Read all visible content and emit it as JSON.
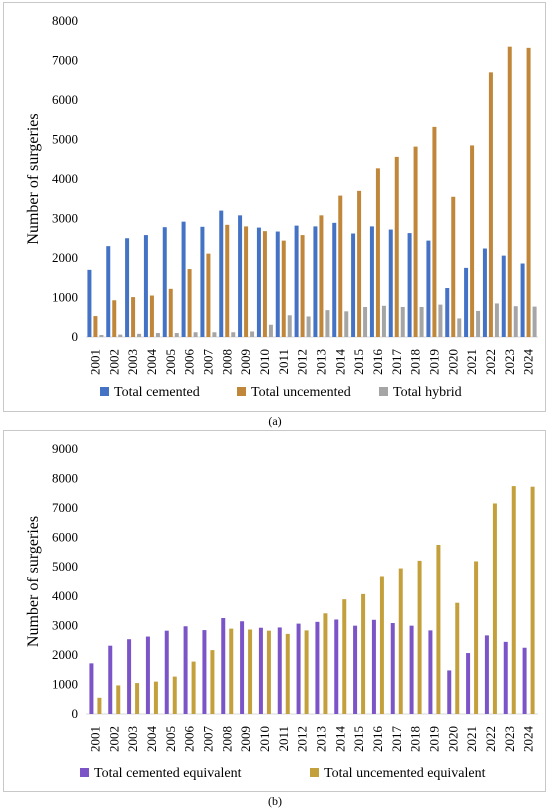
{
  "chart_data": [
    {
      "panel_label": "(a)",
      "type": "bar",
      "ylabel": "Number of surgeries",
      "ylim": [
        0,
        8000
      ],
      "yticks": [
        0,
        1000,
        2000,
        3000,
        4000,
        5000,
        6000,
        7000,
        8000
      ],
      "grid": false,
      "legend_position": "bottom",
      "categories": [
        "2001",
        "2002",
        "2003",
        "2004",
        "2005",
        "2006",
        "2007",
        "2008",
        "2009",
        "2010",
        "2011",
        "2012",
        "2013",
        "2014",
        "2015",
        "2016",
        "2017",
        "2018",
        "2019",
        "2020",
        "2021",
        "2022",
        "2023",
        "2024"
      ],
      "series": [
        {
          "name": "Total cemented",
          "color": "#4472c4",
          "values": [
            1700,
            2300,
            2500,
            2580,
            2780,
            2920,
            2790,
            3200,
            3080,
            2770,
            2670,
            2820,
            2800,
            2890,
            2620,
            2800,
            2720,
            2630,
            2440,
            1240,
            1750,
            2240,
            2060,
            1860
          ]
        },
        {
          "name": "Total uncemented",
          "color": "#c0873a",
          "values": [
            530,
            930,
            1010,
            1050,
            1220,
            1720,
            2110,
            2840,
            2800,
            2680,
            2440,
            2580,
            3080,
            3580,
            3700,
            4270,
            4560,
            4820,
            5320,
            3550,
            4850,
            6700,
            7350,
            7320
          ]
        },
        {
          "name": "Total hybrid",
          "color": "#a5a5a5",
          "values": [
            50,
            60,
            80,
            100,
            100,
            120,
            120,
            120,
            140,
            310,
            550,
            520,
            680,
            650,
            760,
            790,
            760,
            760,
            820,
            470,
            660,
            850,
            780,
            770
          ]
        }
      ]
    },
    {
      "panel_label": "(b)",
      "type": "bar",
      "ylabel": "Number of surgeries",
      "ylim": [
        0,
        9000
      ],
      "yticks": [
        0,
        1000,
        2000,
        3000,
        4000,
        5000,
        6000,
        7000,
        8000,
        9000
      ],
      "grid": false,
      "legend_position": "bottom",
      "categories": [
        "2001",
        "2002",
        "2003",
        "2004",
        "2005",
        "2006",
        "2007",
        "2008",
        "2009",
        "2010",
        "2011",
        "2012",
        "2013",
        "2014",
        "2015",
        "2016",
        "2017",
        "2018",
        "2019",
        "2020",
        "2021",
        "2022",
        "2023",
        "2024"
      ],
      "series": [
        {
          "name": "Total cemented equivalent",
          "color": "#7b55c7",
          "values": [
            1720,
            2320,
            2540,
            2630,
            2830,
            2980,
            2850,
            3260,
            3150,
            2930,
            2940,
            3070,
            3130,
            3210,
            3000,
            3200,
            3090,
            3000,
            2840,
            1480,
            2070,
            2670,
            2450,
            2250
          ]
        },
        {
          "name": "Total uncemented equivalent",
          "color": "#c3a03c",
          "values": [
            550,
            970,
            1050,
            1100,
            1270,
            1780,
            2170,
            2900,
            2870,
            2830,
            2720,
            2840,
            3420,
            3900,
            4080,
            4670,
            4940,
            5200,
            5740,
            3780,
            5180,
            7150,
            7740,
            7720
          ]
        }
      ]
    }
  ]
}
